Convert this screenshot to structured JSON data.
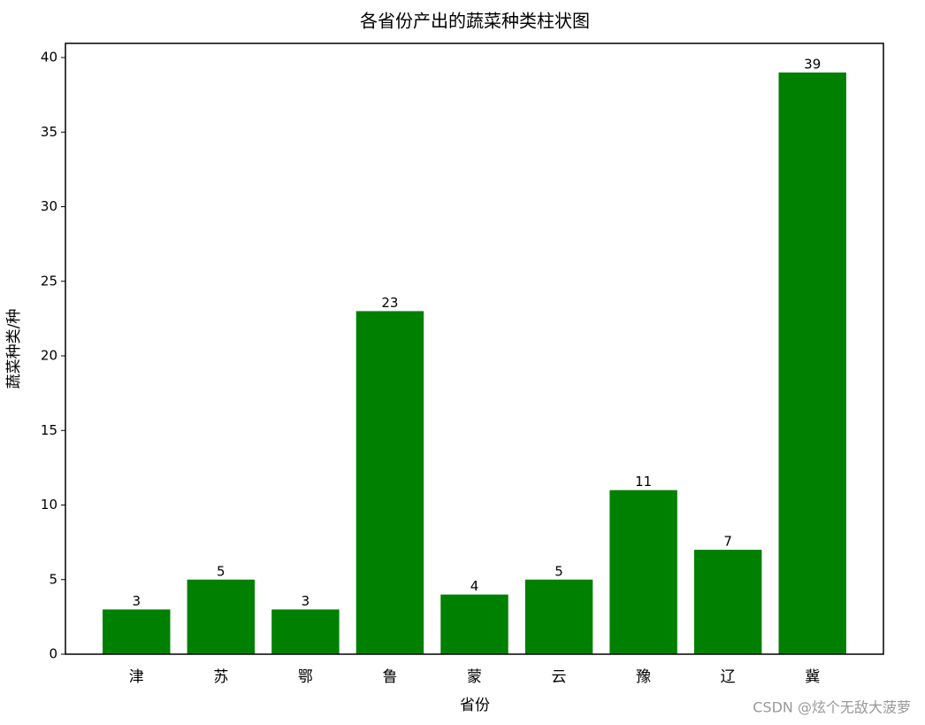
{
  "chart_data": {
    "type": "bar",
    "title": "各省份产出的蔬菜种类柱状图",
    "x_label": "省份",
    "y_label": "蔬菜种类/种",
    "categories": [
      "津",
      "苏",
      "鄂",
      "鲁",
      "蒙",
      "云",
      "豫",
      "辽",
      "冀"
    ],
    "values": [
      3,
      5,
      3,
      23,
      4,
      5,
      11,
      7,
      39
    ],
    "color": "#008000",
    "ylim": [
      0,
      40.95
    ],
    "yticks": [
      0,
      5,
      10,
      15,
      20,
      25,
      30,
      35,
      40
    ],
    "grid": false,
    "watermark": "CSDN @炫个无敌大菠萝"
  }
}
